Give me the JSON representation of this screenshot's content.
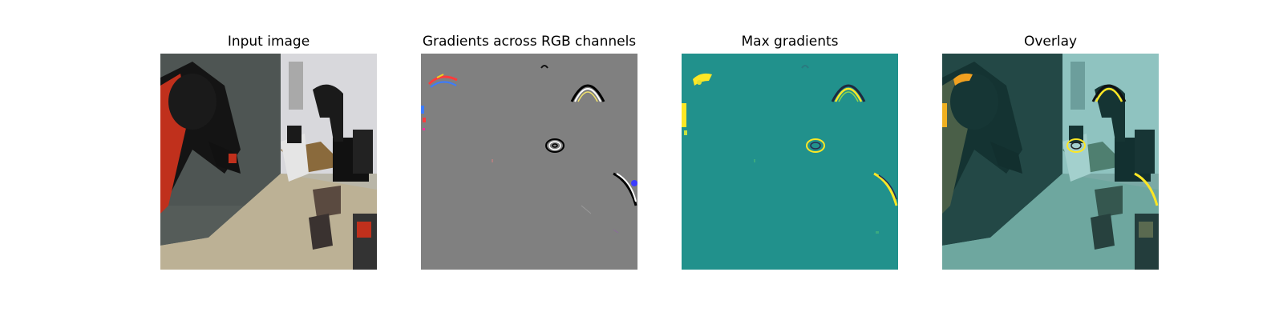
{
  "panels": [
    {
      "title": "Input image"
    },
    {
      "title": "Gradients across RGB channels"
    },
    {
      "title": "Max gradients"
    },
    {
      "title": "Overlay"
    }
  ],
  "colors": {
    "gradient_background": "#808080",
    "max_gradient_background": "#21918c",
    "max_gradient_high": "#fde725",
    "overlay_tint": "#3a9a9a",
    "robot_arm_red": "#c0301c"
  }
}
